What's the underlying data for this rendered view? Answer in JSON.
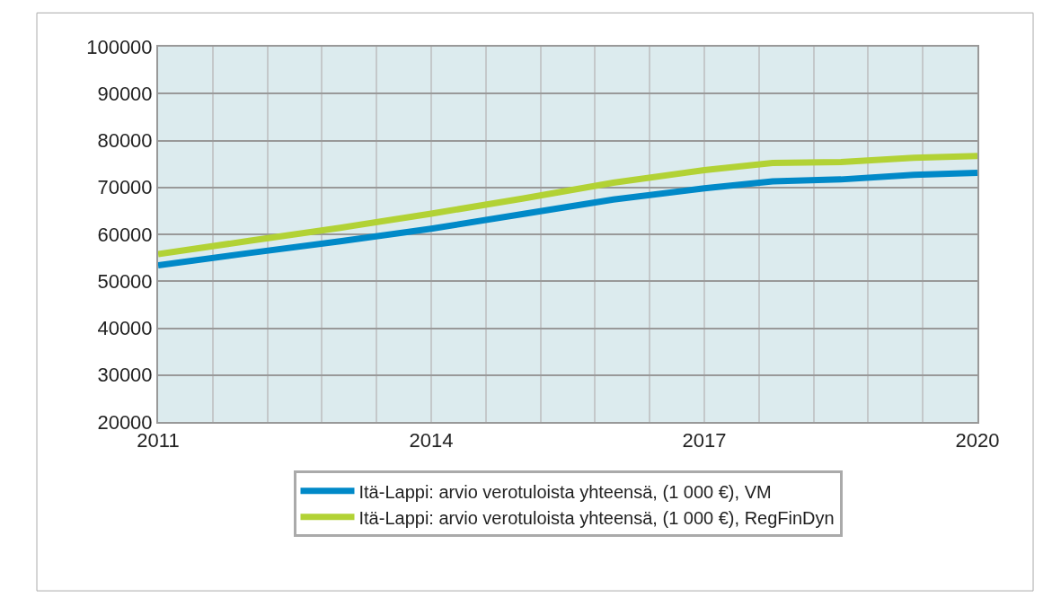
{
  "chart_data": {
    "type": "line",
    "x": [
      2011,
      2012,
      2013,
      2014,
      2015,
      2016,
      2017,
      2017.75,
      2018.5,
      2019.3,
      2020
    ],
    "series": [
      {
        "name": "Itä-Lappi: arvio verotuloista yhteensä, (1 000 €), VM",
        "color": "#0089c8",
        "values": [
          53400,
          56000,
          58500,
          61200,
          64300,
          67400,
          69800,
          71300,
          71700,
          72700,
          73100
        ]
      },
      {
        "name": "Itä-Lappi: arvio verotuloista yhteensä, (1 000 €), RegFinDyn",
        "color": "#b2d235",
        "values": [
          55800,
          58600,
          61400,
          64400,
          67600,
          71000,
          73700,
          75200,
          75400,
          76300,
          76700
        ]
      }
    ],
    "xlim": [
      2011,
      2020
    ],
    "xticks": [
      2011,
      {
        "value": 2011.6,
        "label": null
      },
      {
        "value": 2012.2,
        "label": null
      },
      {
        "value": 2012.8,
        "label": null
      },
      {
        "value": 2013.4,
        "label": null
      },
      2014,
      {
        "value": 2014.6,
        "label": null
      },
      {
        "value": 2015.2,
        "label": null
      },
      {
        "value": 2015.8,
        "label": null
      },
      {
        "value": 2016.4,
        "label": null
      },
      2017,
      {
        "value": 2017.6,
        "label": null
      },
      {
        "value": 2018.2,
        "label": null
      },
      {
        "value": 2018.8,
        "label": null
      },
      {
        "value": 2019.4,
        "label": null
      },
      2020
    ],
    "ylim": [
      20000,
      100000
    ],
    "yticks": [
      20000,
      30000,
      40000,
      50000,
      60000,
      70000,
      80000,
      90000,
      100000
    ],
    "grid": true,
    "legend": "bottom",
    "marker": "none",
    "line_style": "solid"
  }
}
